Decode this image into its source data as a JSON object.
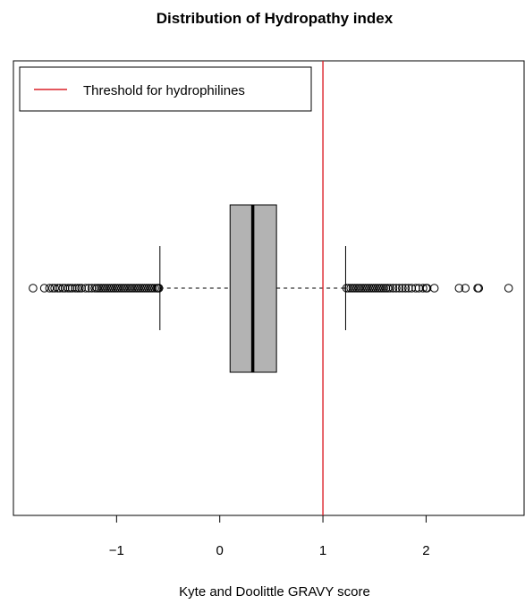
{
  "chart_data": {
    "type": "boxplot",
    "orientation": "horizontal",
    "title": "Distribution of Hydropathy index",
    "xlabel": "Kyte and Doolittle GRAVY score",
    "ylabel": "",
    "xlim": [
      -2.0,
      2.95
    ],
    "xticks": [
      -1,
      0,
      1,
      2
    ],
    "xtick_labels": [
      "−1",
      "0",
      "1",
      "2"
    ],
    "grid": false,
    "legend": {
      "position": "top-left",
      "entries": [
        {
          "label": "Threshold for hydrophilines",
          "color": "#dc2028",
          "style": "line"
        }
      ]
    },
    "box": {
      "q1": 0.1,
      "median": 0.32,
      "q3": 0.55,
      "whisker_low": -0.58,
      "whisker_high": 1.22,
      "fill": "#b3b3b3"
    },
    "threshold": {
      "value": 1.0,
      "color": "#dc2028"
    },
    "outliers_low": [
      -1.81,
      -1.7,
      -1.65,
      -1.62,
      -1.6,
      -1.57,
      -1.55,
      -1.52,
      -1.5,
      -1.47,
      -1.45,
      -1.43,
      -1.4,
      -1.38,
      -1.36,
      -1.34,
      -1.3,
      -1.27,
      -1.24,
      -1.21,
      -1.19,
      -1.17,
      -1.15,
      -1.13,
      -1.11,
      -1.09,
      -1.07,
      -1.05,
      -1.03,
      -1.01,
      -0.99,
      -0.97,
      -0.95,
      -0.93,
      -0.91,
      -0.89,
      -0.87,
      -0.85,
      -0.83,
      -0.81,
      -0.79,
      -0.77,
      -0.75,
      -0.73,
      -0.71,
      -0.69,
      -0.67,
      -0.65,
      -0.63,
      -0.61,
      -0.6,
      -0.59
    ],
    "outliers_high": [
      1.23,
      1.25,
      1.27,
      1.29,
      1.31,
      1.33,
      1.35,
      1.37,
      1.39,
      1.41,
      1.43,
      1.45,
      1.47,
      1.49,
      1.51,
      1.53,
      1.55,
      1.57,
      1.59,
      1.61,
      1.63,
      1.65,
      1.68,
      1.71,
      1.74,
      1.77,
      1.8,
      1.83,
      1.86,
      1.9,
      1.93,
      1.97,
      2.0,
      2.01,
      2.08,
      2.32,
      2.38,
      2.5,
      2.51,
      2.8
    ]
  }
}
